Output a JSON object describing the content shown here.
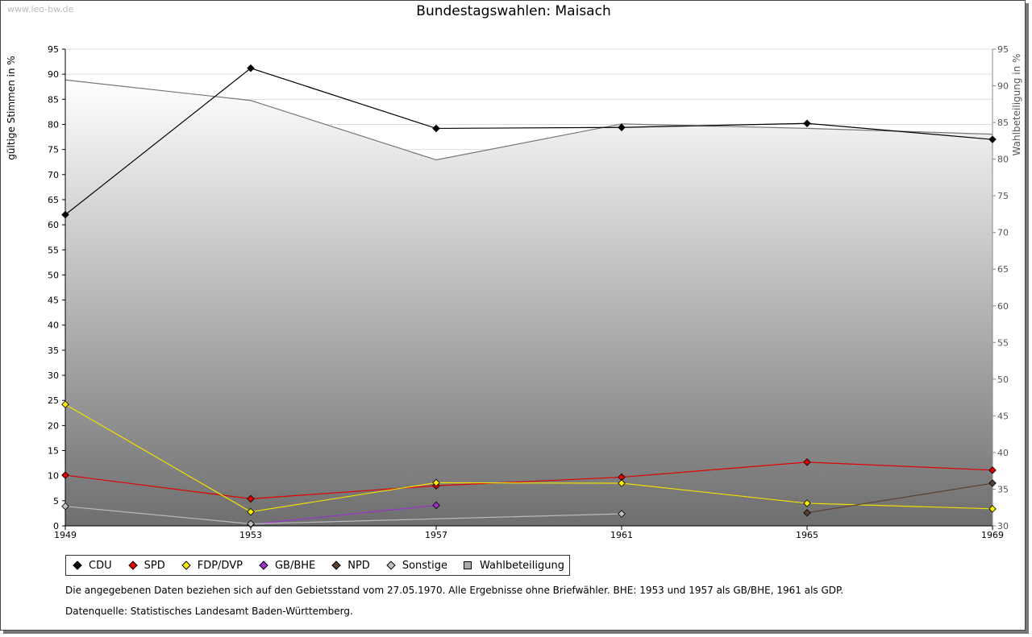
{
  "watermark": "www.leo-bw.de",
  "chart_data": {
    "type": "line",
    "title": "Bundestagswahlen: Maisach",
    "ylabel": "gültige Stimmen in %",
    "y2label": "Wahlbeteiligung in %",
    "ylim": [
      0,
      95
    ],
    "y2lim": [
      30,
      95
    ],
    "yticks": [
      0,
      5,
      10,
      15,
      20,
      25,
      30,
      35,
      40,
      45,
      50,
      55,
      60,
      65,
      70,
      75,
      80,
      85,
      90,
      95
    ],
    "y2ticks": [
      30,
      35,
      40,
      45,
      50,
      55,
      60,
      65,
      70,
      75,
      80,
      85,
      90,
      95
    ],
    "categories": [
      "1949",
      "1953",
      "1957",
      "1961",
      "1965",
      "1969"
    ],
    "turnout": {
      "name": "Wahlbeteiligung",
      "values": [
        90.8,
        88.0,
        79.9,
        84.8,
        84.2,
        83.4
      ]
    },
    "series": [
      {
        "name": "CDU",
        "color": "#000000",
        "values": [
          62.0,
          91.2,
          79.2,
          79.4,
          80.2,
          77.0
        ]
      },
      {
        "name": "SPD",
        "color": "#e00000",
        "values": [
          10.1,
          5.4,
          8.0,
          9.7,
          12.7,
          11.1
        ]
      },
      {
        "name": "FDP/DVP",
        "color": "#ffee00",
        "values": [
          24.2,
          2.8,
          8.6,
          8.5,
          4.5,
          3.4
        ]
      },
      {
        "name": "GB/BHE",
        "color": "#9933cc",
        "values": [
          null,
          0.3,
          4.1,
          null,
          null,
          null
        ]
      },
      {
        "name": "NPD",
        "color": "#5a4030",
        "values": [
          null,
          null,
          null,
          null,
          2.6,
          8.5
        ]
      },
      {
        "name": "Sonstige",
        "color": "#c0c0c0",
        "values": [
          3.9,
          0.4,
          null,
          2.4,
          null,
          null
        ]
      }
    ],
    "sonstige_line": [
      3.9,
      0.4,
      1.4,
      2.4,
      null,
      null
    ]
  },
  "legend": {
    "items": [
      {
        "label": "CDU",
        "color": "#000000"
      },
      {
        "label": "SPD",
        "color": "#e00000"
      },
      {
        "label": "FDP/DVP",
        "color": "#ffee00"
      },
      {
        "label": "GB/BHE",
        "color": "#9933cc"
      },
      {
        "label": "NPD",
        "color": "#5a4030"
      },
      {
        "label": "Sonstige",
        "color": "#c0c0c0"
      }
    ],
    "turnout_label": "Wahlbeteiligung"
  },
  "notes": {
    "line1": "Die angegebenen Daten beziehen sich auf den Gebietsstand vom 27.05.1970. Alle Ergebnisse ohne Briefwähler. BHE: 1953 und 1957 als GB/BHE, 1961 als GDP.",
    "line2": "Datenquelle: Statistisches Landesamt Baden-Württemberg."
  }
}
